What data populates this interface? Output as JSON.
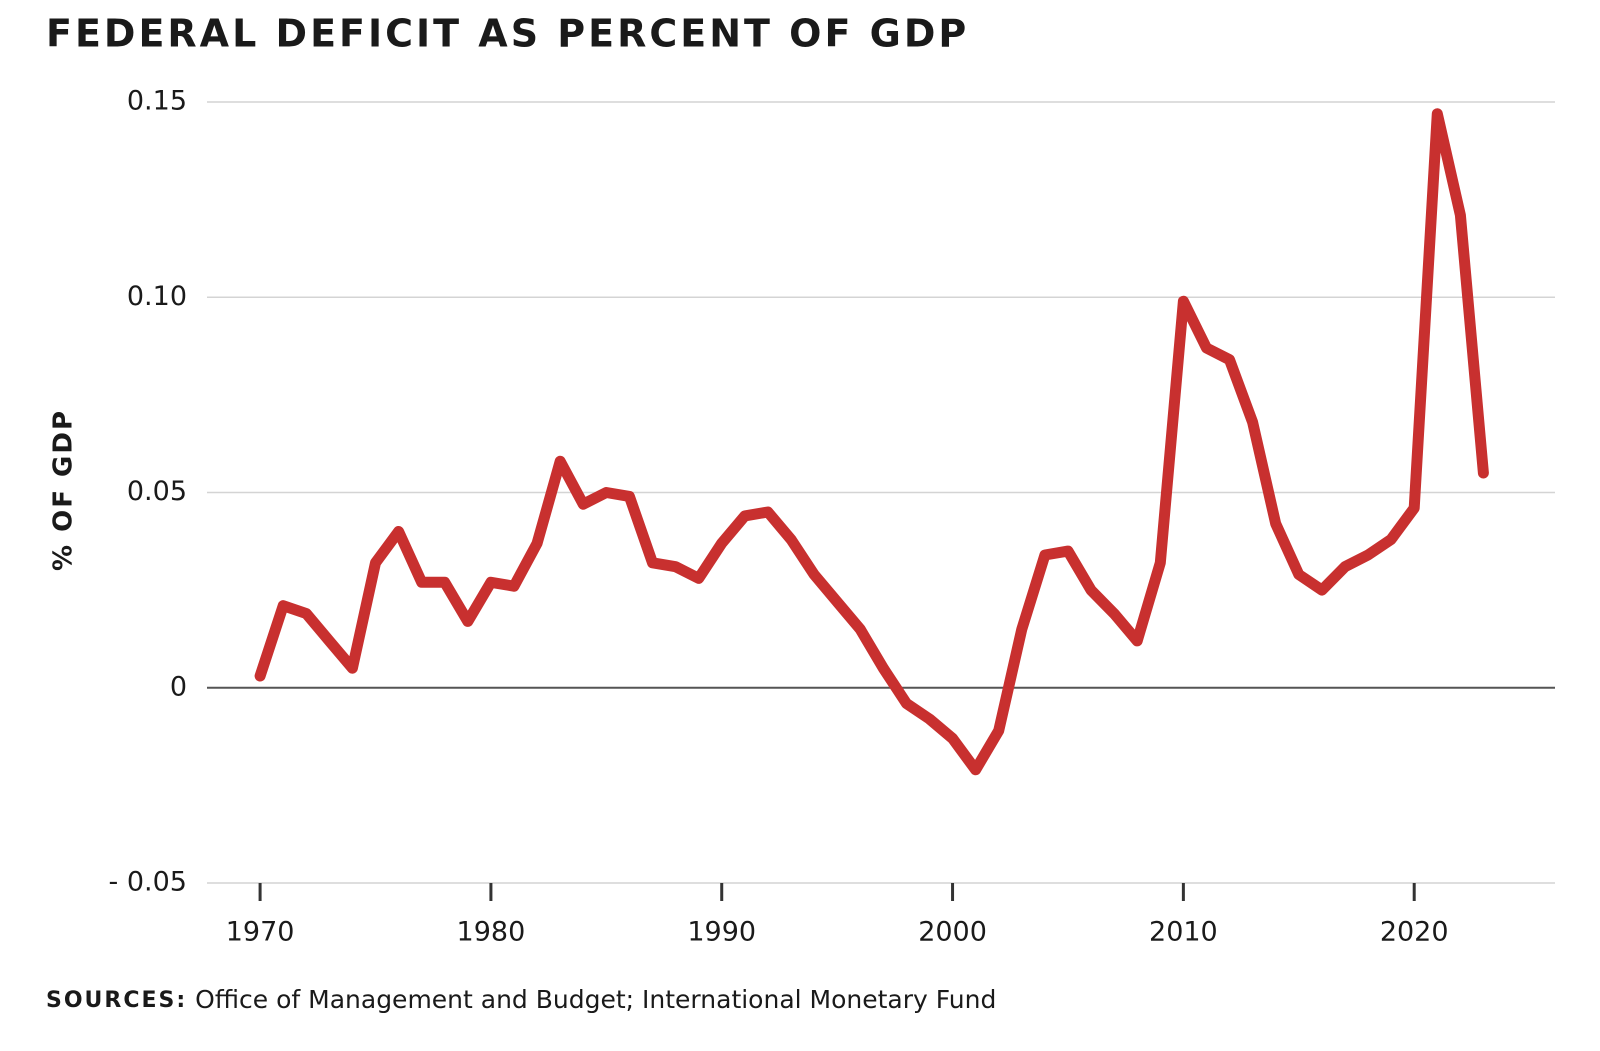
{
  "chart_data": {
    "type": "line",
    "title": "FEDERAL DEFICIT AS PERCENT OF GDP",
    "y_label": "% OF GDP",
    "source_label": "SOURCES:",
    "source": "Office of Management and Budget; International Monetary Fund",
    "x": [
      1970,
      1971,
      1972,
      1973,
      1974,
      1975,
      1976,
      1977,
      1978,
      1979,
      1980,
      1981,
      1982,
      1983,
      1984,
      1985,
      1986,
      1987,
      1988,
      1989,
      1990,
      1991,
      1992,
      1993,
      1994,
      1995,
      1996,
      1997,
      1998,
      1999,
      2000,
      2001,
      2002,
      2003,
      2004,
      2005,
      2006,
      2007,
      2008,
      2009,
      2010,
      2011,
      2012,
      2013,
      2014,
      2015,
      2016,
      2017,
      2018,
      2019,
      2020,
      2021,
      2022,
      2023
    ],
    "series": [
      {
        "name": "Federal deficit",
        "color": "#c8302f",
        "values": [
          0.003,
          0.021,
          0.019,
          0.012,
          0.005,
          0.032,
          0.04,
          0.027,
          0.027,
          0.017,
          0.027,
          0.026,
          0.037,
          0.058,
          0.047,
          0.05,
          0.049,
          0.032,
          0.031,
          0.028,
          0.037,
          0.044,
          0.045,
          0.038,
          0.029,
          0.022,
          0.015,
          0.005,
          -0.004,
          -0.008,
          -0.013,
          -0.021,
          -0.011,
          0.015,
          0.034,
          0.035,
          0.025,
          0.019,
          0.012,
          0.032,
          0.099,
          0.087,
          0.084,
          0.068,
          0.042,
          0.029,
          0.025,
          0.031,
          0.034,
          0.038,
          0.046,
          0.147,
          0.121,
          0.055
        ]
      }
    ],
    "xlim": [
      1967.7,
      2026.1
    ],
    "xticks": [
      1970,
      1980,
      1990,
      2000,
      2010,
      2020
    ],
    "ylim": [
      -0.05,
      0.15
    ],
    "yticks": [
      {
        "value": -0.05,
        "label": "- 0.05"
      },
      0,
      0.05,
      {
        "value": 0.1,
        "label": "0.10"
      },
      0.15
    ],
    "grid": true
  }
}
